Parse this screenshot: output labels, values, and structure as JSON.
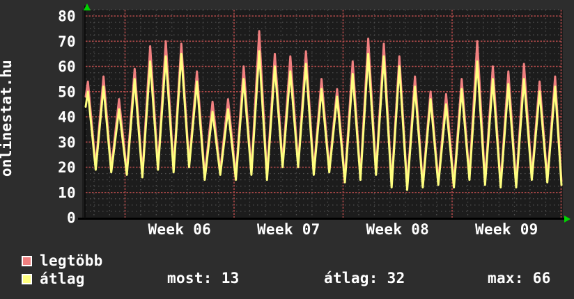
{
  "site_label": "onlinestat.hu",
  "colors": {
    "background": "#2d2d2d",
    "plot_background": "#1c1c1c",
    "grid_minor": "#4f4f4f",
    "grid_major": "#b04a4a",
    "axis": "#000000",
    "arrow": "#00d400",
    "text": "#ffffff",
    "series_max": "#f08080",
    "series_avg": "#ffff80"
  },
  "chart_data": {
    "type": "line",
    "title": "",
    "grid_on": true,
    "legend_position": "bottom",
    "y_axis": {
      "min": 0,
      "max": 80,
      "tick_step": 10,
      "minor_step": 2.5,
      "tick_labels": [
        "0",
        "10",
        "20",
        "30",
        "40",
        "50",
        "60",
        "70",
        "80"
      ]
    },
    "x_axis": {
      "tick_labels": [
        "Week 06",
        "Week 07",
        "Week 08",
        "Week 09"
      ],
      "minor_grid": "1 day",
      "major_grid": "1 week",
      "days_shown": 31
    },
    "series": [
      {
        "name": "legtöbb",
        "role": "daily maximum",
        "color": "#f08080",
        "daily_peaks": [
          54,
          56,
          47,
          59,
          68,
          70,
          69,
          58,
          46,
          47,
          60,
          74,
          65,
          64,
          66,
          55,
          51,
          62,
          71,
          69,
          64,
          56,
          50,
          49,
          55,
          70,
          60,
          58,
          61,
          54,
          56
        ],
        "valley_offset": 1.5,
        "end_value": 14.5
      },
      {
        "name": "átlag",
        "role": "daily average",
        "color": "#ffff80",
        "daily_peaks": [
          50,
          52,
          43,
          55,
          62,
          64,
          65,
          54,
          42,
          43,
          55,
          66,
          60,
          58,
          61,
          51,
          48,
          57,
          65,
          64,
          60,
          52,
          47,
          45,
          51,
          62,
          55,
          53,
          55,
          50,
          52
        ],
        "valley_offset": 0,
        "end_value": 13
      }
    ],
    "daily_valleys": [
      19,
      18,
      17,
      16,
      19,
      18,
      20,
      15,
      17,
      15,
      17,
      15,
      20,
      20,
      17,
      18,
      14,
      15,
      17,
      12,
      11,
      12,
      13,
      12,
      15,
      13,
      12,
      12,
      15,
      14
    ]
  },
  "legend": {
    "items": [
      {
        "label": "legtöbb",
        "color": "#f08080"
      },
      {
        "label": "átlag",
        "color": "#ffff80"
      }
    ]
  },
  "stats": [
    {
      "label": "most:",
      "value": "13"
    },
    {
      "label": "átlag:",
      "value": "32"
    },
    {
      "label": "max:",
      "value": "66"
    }
  ]
}
